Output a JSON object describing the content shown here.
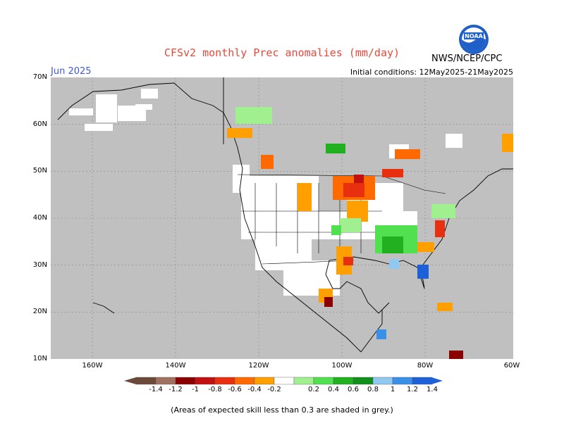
{
  "title": "CFSv2 monthly Prec anomalies (mm/day)",
  "month_label": "Jun 2025",
  "initial_conditions": "Initial conditions: 12May2025-21May2025",
  "agency": "NWS/NCEP/CPC",
  "logo_text": "NOAA",
  "footnote": "(Areas of expected skill less than 0.3 are shaded in grey.)",
  "colors": {
    "grey_mask": "#c0c0c0",
    "scale": [
      "#6b4a3a",
      "#a07060",
      "#8b0000",
      "#c01010",
      "#e83010",
      "#ff6a00",
      "#ff9f00",
      "#ffffff",
      "#a0f090",
      "#50e050",
      "#20b020",
      "#10901a",
      "#90c8f0",
      "#3a8fe8",
      "#1e60d8"
    ]
  },
  "map": {
    "lat_labels": [
      "70N",
      "60N",
      "50N",
      "40N",
      "30N",
      "20N",
      "10N"
    ],
    "lon_labels": [
      "160W",
      "140W",
      "120W",
      "100W",
      "80W",
      "60W"
    ]
  },
  "colorbar": {
    "labels": [
      "-1.4",
      "-1.2",
      "-1",
      "-0.8",
      "-0.6",
      "-0.4",
      "-0.2",
      "0.2",
      "0.4",
      "0.6",
      "0.8",
      "1",
      "1.2",
      "1.4"
    ]
  }
}
